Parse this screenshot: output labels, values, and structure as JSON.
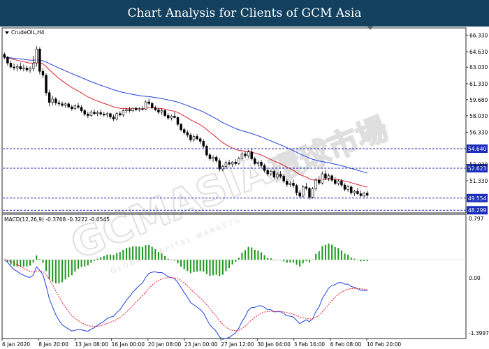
{
  "header": {
    "title": "Chart Analysis for Clients of GCM Asia"
  },
  "chart_data": {
    "type": "candlestick",
    "symbol_label": "CrudeOIL,H4",
    "x_ticks": [
      "6 Jan 2020",
      "8 Jan 20:00",
      "13 Jan 08:00",
      "16 Jan 00:00",
      "20 Jan 08:00",
      "23 Jan 00:00",
      "27 Jan 12:00",
      "30 Jan 04:00",
      "3 Feb 16:00",
      "6 Feb 08:00",
      "10 Feb 20:00"
    ],
    "price_ticks": [
      "66.330",
      "64.630",
      "63.030",
      "61.330",
      "59.680",
      "58.030",
      "56.330",
      "53.030",
      "51.330"
    ],
    "ylim": [
      48.1,
      67.0
    ],
    "levels": [
      {
        "value": 54.64,
        "label": "54.640"
      },
      {
        "value": 52.623,
        "label": "52.623"
      },
      {
        "value": 49.554,
        "label": "49.554"
      },
      {
        "value": 48.299,
        "label": "48.299"
      }
    ],
    "candles": [
      [
        64.35,
        64.55,
        63.85,
        64.05
      ],
      [
        64.05,
        64.2,
        63.2,
        63.45
      ],
      [
        63.45,
        63.7,
        62.9,
        63.05
      ],
      [
        63.05,
        63.4,
        62.7,
        62.95
      ],
      [
        62.95,
        63.35,
        62.6,
        63.1
      ],
      [
        63.1,
        63.5,
        62.7,
        62.85
      ],
      [
        62.85,
        63.3,
        62.6,
        62.95
      ],
      [
        62.95,
        63.2,
        62.55,
        62.75
      ],
      [
        62.75,
        63.1,
        62.45,
        62.9
      ],
      [
        62.9,
        64.2,
        62.6,
        63.45
      ],
      [
        63.45,
        65.2,
        63.1,
        64.9
      ],
      [
        64.9,
        65.1,
        62.3,
        62.6
      ],
      [
        62.6,
        62.9,
        61.9,
        62.2
      ],
      [
        62.2,
        62.4,
        60.1,
        60.4
      ],
      [
        60.4,
        60.7,
        59.0,
        59.4
      ],
      [
        59.4,
        60.1,
        59.1,
        59.75
      ],
      [
        59.75,
        59.95,
        59.1,
        59.35
      ],
      [
        59.35,
        59.65,
        59.0,
        59.25
      ],
      [
        59.25,
        59.5,
        58.95,
        59.1
      ],
      [
        59.1,
        59.4,
        58.85,
        59.25
      ],
      [
        59.25,
        59.45,
        58.8,
        58.95
      ],
      [
        58.95,
        59.15,
        58.55,
        58.75
      ],
      [
        58.75,
        59.2,
        58.6,
        59.05
      ],
      [
        59.05,
        59.35,
        58.75,
        58.9
      ],
      [
        58.9,
        59.1,
        58.35,
        58.55
      ],
      [
        58.55,
        58.75,
        58.0,
        58.2
      ],
      [
        58.2,
        58.45,
        57.8,
        58.05
      ],
      [
        58.05,
        58.6,
        57.9,
        58.4
      ],
      [
        58.4,
        58.7,
        58.1,
        58.25
      ],
      [
        58.25,
        58.55,
        58.0,
        58.35
      ],
      [
        58.35,
        58.65,
        58.05,
        58.2
      ],
      [
        58.2,
        58.45,
        57.95,
        58.1
      ],
      [
        58.1,
        58.4,
        57.85,
        58.25
      ],
      [
        58.25,
        58.35,
        57.7,
        57.9
      ],
      [
        57.9,
        58.15,
        57.5,
        57.7
      ],
      [
        57.7,
        58.45,
        57.55,
        58.25
      ],
      [
        58.25,
        58.5,
        57.95,
        58.1
      ],
      [
        58.1,
        58.7,
        57.9,
        58.55
      ],
      [
        58.55,
        58.85,
        58.3,
        58.65
      ],
      [
        58.65,
        58.95,
        58.35,
        58.55
      ],
      [
        58.55,
        58.9,
        58.4,
        58.8
      ],
      [
        58.8,
        58.95,
        58.5,
        58.65
      ],
      [
        58.65,
        58.9,
        58.45,
        58.75
      ],
      [
        58.75,
        59.0,
        58.55,
        58.7
      ],
      [
        58.7,
        59.6,
        58.6,
        59.45
      ],
      [
        59.45,
        59.8,
        59.1,
        59.3
      ],
      [
        59.3,
        59.45,
        58.7,
        58.85
      ],
      [
        58.85,
        59.05,
        58.5,
        58.65
      ],
      [
        58.65,
        58.8,
        58.2,
        58.4
      ],
      [
        58.4,
        58.75,
        58.1,
        58.55
      ],
      [
        58.55,
        58.7,
        57.9,
        58.05
      ],
      [
        58.05,
        58.3,
        57.6,
        57.8
      ],
      [
        57.8,
        58.15,
        57.55,
        58.0
      ],
      [
        58.0,
        58.4,
        57.75,
        57.85
      ],
      [
        57.85,
        57.95,
        56.95,
        57.15
      ],
      [
        57.15,
        57.3,
        56.4,
        56.6
      ],
      [
        56.6,
        56.8,
        56.1,
        56.3
      ],
      [
        56.3,
        56.55,
        55.8,
        56.05
      ],
      [
        56.05,
        56.25,
        55.3,
        55.55
      ],
      [
        55.55,
        56.1,
        55.35,
        55.9
      ],
      [
        55.9,
        56.15,
        55.5,
        55.65
      ],
      [
        55.65,
        55.85,
        55.15,
        55.4
      ],
      [
        55.4,
        55.6,
        54.7,
        54.9
      ],
      [
        54.9,
        55.05,
        53.8,
        54.0
      ],
      [
        54.0,
        54.2,
        53.4,
        53.6
      ],
      [
        53.6,
        53.95,
        53.3,
        53.75
      ],
      [
        53.75,
        53.95,
        53.2,
        53.4
      ],
      [
        53.4,
        53.65,
        52.3,
        52.55
      ],
      [
        52.55,
        53.0,
        52.3,
        52.8
      ],
      [
        52.8,
        53.4,
        52.6,
        53.2
      ],
      [
        53.2,
        53.5,
        52.9,
        53.05
      ],
      [
        53.05,
        53.35,
        52.75,
        53.25
      ],
      [
        53.25,
        53.55,
        52.9,
        53.1
      ],
      [
        53.1,
        53.8,
        52.95,
        53.6
      ],
      [
        53.6,
        54.3,
        53.4,
        54.1
      ],
      [
        54.1,
        54.4,
        53.7,
        53.9
      ],
      [
        53.9,
        54.5,
        53.7,
        54.3
      ],
      [
        54.3,
        54.6,
        53.4,
        53.6
      ],
      [
        53.6,
        53.8,
        52.9,
        53.1
      ],
      [
        53.1,
        53.4,
        52.8,
        53.25
      ],
      [
        53.25,
        53.45,
        52.7,
        52.9
      ],
      [
        52.9,
        53.1,
        52.2,
        52.4
      ],
      [
        52.4,
        52.7,
        51.8,
        52.05
      ],
      [
        52.05,
        52.5,
        51.85,
        52.3
      ],
      [
        52.3,
        52.45,
        51.5,
        51.7
      ],
      [
        51.7,
        52.2,
        51.5,
        52.0
      ],
      [
        52.0,
        52.35,
        51.6,
        51.8
      ],
      [
        51.8,
        52.0,
        51.1,
        51.3
      ],
      [
        51.3,
        51.55,
        50.7,
        50.95
      ],
      [
        50.95,
        51.3,
        50.7,
        51.1
      ],
      [
        51.1,
        51.45,
        50.6,
        50.85
      ],
      [
        50.85,
        51.0,
        49.8,
        50.1
      ],
      [
        50.1,
        50.4,
        49.5,
        49.75
      ],
      [
        49.75,
        50.9,
        49.6,
        50.7
      ],
      [
        50.7,
        51.1,
        50.35,
        50.55
      ],
      [
        50.55,
        50.7,
        49.4,
        49.65
      ],
      [
        49.65,
        50.7,
        49.5,
        50.5
      ],
      [
        50.5,
        51.6,
        50.3,
        51.4
      ],
      [
        51.4,
        51.8,
        50.9,
        51.1
      ],
      [
        51.1,
        52.3,
        50.95,
        52.05
      ],
      [
        52.05,
        52.4,
        51.4,
        51.6
      ],
      [
        51.6,
        52.1,
        51.3,
        51.85
      ],
      [
        51.85,
        52.0,
        51.2,
        51.4
      ],
      [
        51.4,
        51.7,
        50.9,
        51.05
      ],
      [
        51.05,
        51.5,
        50.85,
        51.3
      ],
      [
        51.3,
        51.55,
        50.7,
        50.9
      ],
      [
        50.9,
        51.1,
        50.25,
        50.45
      ],
      [
        50.45,
        50.9,
        50.2,
        50.7
      ],
      [
        50.7,
        50.85,
        49.9,
        50.1
      ],
      [
        50.1,
        50.4,
        49.75,
        50.25
      ],
      [
        50.25,
        50.6,
        49.85,
        50.0
      ],
      [
        50.0,
        50.35,
        49.65,
        49.8
      ],
      [
        49.8,
        50.2,
        49.6,
        50.05
      ],
      [
        50.05,
        50.3,
        49.7,
        49.85
      ]
    ],
    "ma_series": [
      {
        "period": 20,
        "color": "#e0202a"
      },
      {
        "period": 50,
        "color": "#1f3fe0"
      }
    ],
    "macd": {
      "label": "MACD(12,26,9) -0.3768 -0.3222 -0.0545",
      "ylim": [
        -1.3997,
        0.797
      ],
      "tick_labels": [
        "0.797",
        "0.00",
        "-1.3997"
      ],
      "histogram_color": "#1f9a1f",
      "macd_color": "#1f3fe0",
      "signal_color": "#e0202a"
    },
    "watermark": {
      "main": "GCMASIA",
      "cn": "環球市場",
      "sub": "GLOBAL CAPITAL MARKETS"
    }
  }
}
